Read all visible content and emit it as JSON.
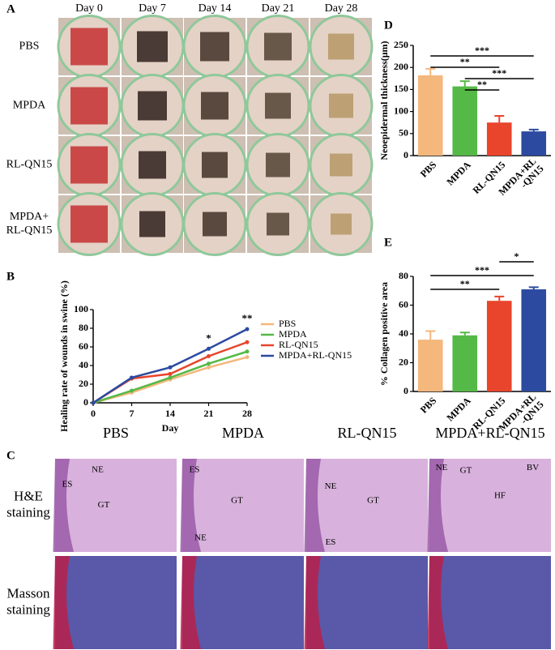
{
  "panel_letters": {
    "a": "A",
    "b": "B",
    "c": "C",
    "d": "D",
    "e": "E"
  },
  "panel_a": {
    "columns": [
      "Day 0",
      "Day 7",
      "Day 14",
      "Day 21",
      "Day 28"
    ],
    "rows": [
      "PBS",
      "MPDA",
      "RL-QN15",
      [
        "MPDA+",
        "RL-QN15"
      ]
    ]
  },
  "panel_c": {
    "columns": [
      "PBS",
      "MPDA",
      "RL-QN15",
      "MPDA+RL-QN15"
    ],
    "rows": [
      [
        "H&E",
        "staining"
      ],
      [
        "Masson",
        "staining"
      ]
    ],
    "annotations": [
      [
        "NE",
        "ES",
        "GT"
      ],
      [
        "ES",
        "GT",
        "NE"
      ],
      [
        "NE",
        "GT",
        "ES"
      ],
      [
        "NE",
        "GT",
        "BV",
        "HF"
      ]
    ]
  },
  "chart_data": [
    {
      "type": "line",
      "x_label": "Day",
      "y_label": "Healing rate of wounds in swine (%)",
      "x": [
        0,
        7,
        14,
        21,
        28
      ],
      "xlim": [
        0,
        28
      ],
      "xticks": [
        0,
        7,
        14,
        21,
        28
      ],
      "ylim": [
        0,
        100
      ],
      "yticks": [
        0,
        20,
        40,
        60,
        80,
        100
      ],
      "series": [
        {
          "name": "PBS",
          "color": "#f4b77c",
          "values": [
            0,
            11,
            25,
            38,
            49
          ]
        },
        {
          "name": "MPDA",
          "color": "#55b947",
          "values": [
            0,
            13,
            27,
            42,
            55
          ]
        },
        {
          "name": "RL-QN15",
          "color": "#e8452c",
          "values": [
            0,
            26,
            31,
            50,
            65
          ]
        },
        {
          "name": "MPDA+RL-QN15",
          "color": "#2c4ba0",
          "values": [
            0,
            27,
            38,
            58,
            79
          ]
        }
      ],
      "annotations": [
        {
          "x": 21,
          "label": "*"
        },
        {
          "x": 28,
          "label": "**"
        }
      ]
    },
    {
      "type": "bar",
      "y_label": "Neoepidermal thickness(μm)",
      "categories": [
        "PBS",
        "MPDA",
        "RL-QN15",
        [
          "MPDA+RL",
          "-QN15"
        ]
      ],
      "values": [
        182,
        157,
        75,
        55
      ],
      "errors": [
        15,
        12,
        15,
        4
      ],
      "colors": [
        "#f4b77c",
        "#55b947",
        "#e8452c",
        "#2c4ba0"
      ],
      "ylim": [
        0,
        250
      ],
      "yticks": [
        0,
        50,
        100,
        150,
        200,
        250
      ],
      "significance": [
        {
          "pair": [
            1,
            2
          ],
          "label": "**"
        },
        {
          "pair": [
            1,
            3
          ],
          "label": "***"
        },
        {
          "pair": [
            0,
            2
          ],
          "label": "**"
        },
        {
          "pair": [
            0,
            3
          ],
          "label": "***"
        }
      ]
    },
    {
      "type": "bar",
      "y_label": "% Collagen positive area",
      "categories": [
        "PBS",
        "MPDA",
        "RL-QN15",
        [
          "MPDA+RL",
          "-QN15"
        ]
      ],
      "values": [
        36,
        39,
        63,
        71
      ],
      "errors": [
        6,
        2,
        3,
        1.5
      ],
      "colors": [
        "#f4b77c",
        "#55b947",
        "#e8452c",
        "#2c4ba0"
      ],
      "ylim": [
        0,
        80
      ],
      "yticks": [
        0,
        20,
        40,
        60,
        80
      ],
      "significance": [
        {
          "pair": [
            0,
            2
          ],
          "label": "**"
        },
        {
          "pair": [
            0,
            3
          ],
          "label": "***"
        },
        {
          "pair": [
            2,
            3
          ],
          "label": "*"
        }
      ]
    }
  ]
}
